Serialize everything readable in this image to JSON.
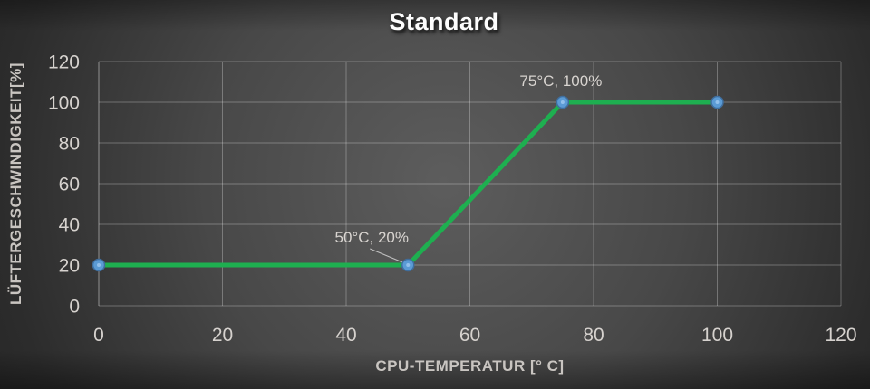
{
  "chart_data": {
    "type": "line",
    "title": "Standard",
    "xlabel": "CPU-TEMPERATUR [° C]",
    "ylabel": "LÜFTERGESCHWINDIGKEIT[%]",
    "x": [
      0,
      50,
      75,
      100
    ],
    "y": [
      20,
      20,
      100,
      100
    ],
    "xlim": [
      0,
      120
    ],
    "ylim": [
      0,
      120
    ],
    "x_ticks": [
      0,
      20,
      40,
      60,
      80,
      100,
      120
    ],
    "y_ticks": [
      0,
      20,
      40,
      60,
      80,
      100,
      120
    ],
    "grid": true,
    "legend": false,
    "annotations": [
      {
        "text": "50°C, 20%",
        "x": 50,
        "y": 20,
        "leader_line": true
      },
      {
        "text": "75°C, 100%",
        "x": 75,
        "y": 100,
        "leader_line": false
      }
    ],
    "colors": {
      "line": "#1eaf50",
      "marker_fill": "#5b9bd5",
      "marker_border": "#3f6e9e",
      "marker_highlight": "#9cc7ee",
      "grid": "rgba(255,255,255,0.28)",
      "axis_line": "rgba(255,255,255,0.45)",
      "tick_text": "#d6d2ce",
      "title_text": "#fdfdfd",
      "leader_line": "rgba(230,230,230,0.75)"
    }
  }
}
